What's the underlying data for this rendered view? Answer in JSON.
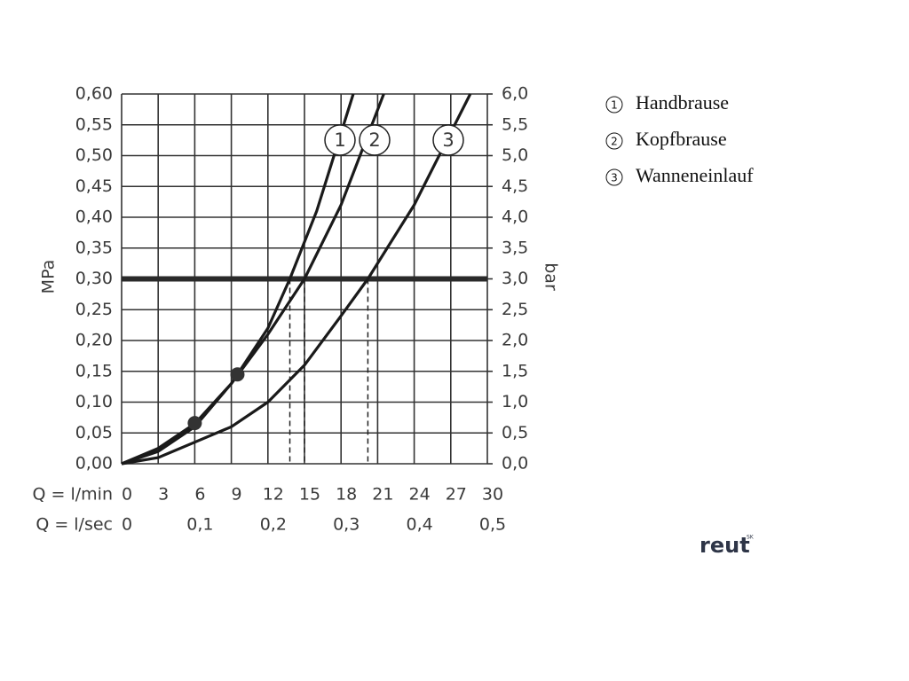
{
  "chart_data": {
    "type": "line",
    "ylabel": "MPa",
    "y2label": "bar",
    "xlabel": "Q = l/min",
    "x2label": "Q = l/sec",
    "xlim": [
      0,
      30
    ],
    "xticks": [
      0,
      3,
      6,
      9,
      12,
      15,
      18,
      21,
      24,
      27,
      30
    ],
    "x2lim": [
      0,
      0.5
    ],
    "x2ticks": [
      0,
      {
        "value": 0.1,
        "label": "0,1"
      },
      {
        "value": 0.2,
        "label": "0,2"
      },
      {
        "value": 0.3,
        "label": "0,3"
      },
      {
        "value": 0.4,
        "label": "0,4"
      },
      {
        "value": 0.5,
        "label": "0,5"
      }
    ],
    "ylim": [
      0,
      0.6
    ],
    "yticks": [
      {
        "value": 0,
        "label": "0,00"
      },
      {
        "value": 0.05,
        "label": "0,05"
      },
      {
        "value": 0.1,
        "label": "0,10"
      },
      {
        "value": 0.15,
        "label": "0,15"
      },
      {
        "value": 0.2,
        "label": "0,20"
      },
      {
        "value": 0.25,
        "label": "0,25"
      },
      {
        "value": 0.3,
        "label": "0,30"
      },
      {
        "value": 0.35,
        "label": "0,35"
      },
      {
        "value": 0.4,
        "label": "0,40"
      },
      {
        "value": 0.45,
        "label": "0,45"
      },
      {
        "value": 0.5,
        "label": "0,50"
      },
      {
        "value": 0.55,
        "label": "0,55"
      },
      {
        "value": 0.6,
        "label": "0,60"
      }
    ],
    "y2lim": [
      0,
      6
    ],
    "y2ticks": [
      {
        "value": 0,
        "label": "0,0"
      },
      {
        "value": 0.5,
        "label": "0,5"
      },
      {
        "value": 1,
        "label": "1,0"
      },
      {
        "value": 1.5,
        "label": "1,5"
      },
      {
        "value": 2,
        "label": "2,0"
      },
      {
        "value": 2.5,
        "label": "2,5"
      },
      {
        "value": 3,
        "label": "3,0"
      },
      {
        "value": 3.5,
        "label": "3,5"
      },
      {
        "value": 4,
        "label": "4,0"
      },
      {
        "value": 4.5,
        "label": "4,5"
      },
      {
        "value": 5,
        "label": "5,0"
      },
      {
        "value": 5.5,
        "label": "5,5"
      },
      {
        "value": 6,
        "label": "6,0"
      }
    ],
    "grid": true,
    "reference_line": 0.3,
    "drop_lines": [
      13.8,
      15,
      20.2
    ],
    "points": {
      "x": [
        6,
        9.5
      ],
      "y": [
        0.066,
        0.145
      ]
    },
    "series": [
      {
        "name": "Handbrause",
        "label": "1",
        "color": "#1a1a1a",
        "x": [
          0,
          3,
          6,
          9,
          12,
          13.8,
          16,
          19
        ],
        "values": [
          0,
          0.025,
          0.065,
          0.13,
          0.22,
          0.3,
          0.41,
          0.6
        ]
      },
      {
        "name": "Kopfbrause",
        "label": "2",
        "color": "#1a1a1a",
        "x": [
          0,
          3,
          6,
          9,
          12,
          15,
          18,
          21.5
        ],
        "values": [
          0,
          0.02,
          0.06,
          0.13,
          0.21,
          0.3,
          0.42,
          0.6
        ]
      },
      {
        "name": "Wanneneinlauf",
        "label": "3",
        "color": "#1a1a1a",
        "x": [
          0,
          3,
          6,
          9,
          12,
          15,
          18,
          20.2,
          24,
          28.6
        ],
        "values": [
          0,
          0.01,
          0.035,
          0.06,
          0.1,
          0.16,
          0.24,
          0.3,
          0.42,
          0.6
        ]
      }
    ],
    "watermark": "reut",
    "watermark_sup": "SK"
  }
}
